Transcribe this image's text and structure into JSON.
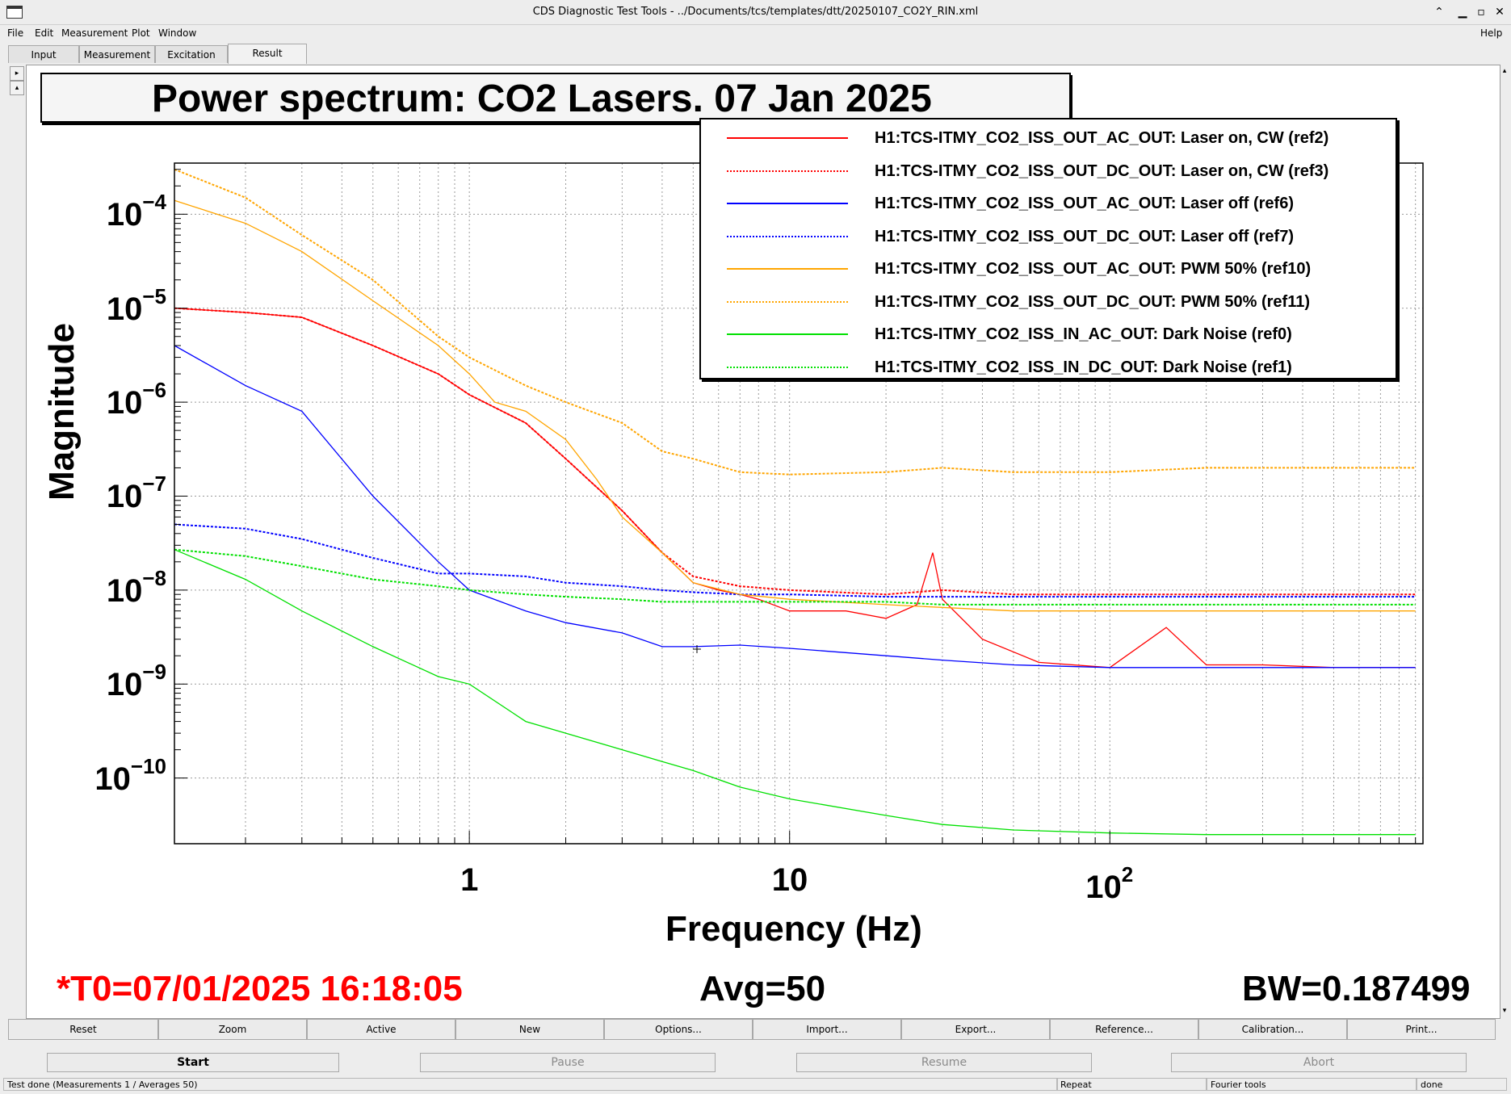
{
  "window": {
    "title": "CDS Diagnostic Test Tools - ../Documents/tcs/templates/dtt/20250107_CO2Y_RIN.xml",
    "controls": [
      "⌃",
      "✕"
    ]
  },
  "menu": {
    "file": "File",
    "edit": "Edit",
    "measurement": "Measurement",
    "plot": "Plot",
    "window": "Window",
    "help": "Help"
  },
  "tabs": [
    "Input",
    "Measurement",
    "Excitation",
    "Result"
  ],
  "active_tab": "Result",
  "plot": {
    "title": "Power spectrum: CO2 Lasers. 07 Jan 2025",
    "ylabel": "Magnitude",
    "xlabel": "Frequency (Hz)",
    "ytick_labels": [
      {
        "base": "10",
        "exp": "−4"
      },
      {
        "base": "10",
        "exp": "−5"
      },
      {
        "base": "10",
        "exp": "−6"
      },
      {
        "base": "10",
        "exp": "−7"
      },
      {
        "base": "10",
        "exp": "−8"
      },
      {
        "base": "10",
        "exp": "−9"
      },
      {
        "base": "10",
        "exp": "−10"
      }
    ],
    "xtick_labels": [
      {
        "base": "1",
        "exp": ""
      },
      {
        "base": "10",
        "exp": ""
      },
      {
        "base": "10",
        "exp": "2"
      }
    ]
  },
  "chart_data": {
    "type": "line",
    "title": "Power spectrum: CO2 Lasers. 07 Jan 2025",
    "xlabel": "Frequency (Hz)",
    "ylabel": "Magnitude",
    "xscale": "log",
    "yscale": "log",
    "xlim": [
      0.12,
      950
    ],
    "ylim": [
      2e-11,
      0.00035
    ],
    "grid": true,
    "legend_position": "top-right",
    "series": [
      {
        "name": "H1:TCS-ITMY_CO2_ISS_OUT_AC_OUT: Laser on, CW (ref2)",
        "color": "#ff0000",
        "style": "solid",
        "x": [
          0.12,
          0.2,
          0.3,
          0.5,
          0.8,
          1,
          1.5,
          2,
          3,
          4,
          5,
          6,
          7,
          8,
          10,
          15,
          20,
          25,
          28,
          30,
          40,
          60,
          100,
          150,
          200,
          300,
          500,
          900
        ],
        "y": [
          1e-05,
          9e-06,
          8e-06,
          4e-06,
          2e-06,
          1.2e-06,
          6e-07,
          2.5e-07,
          7e-08,
          2.5e-08,
          1.2e-08,
          1e-08,
          9e-09,
          8e-09,
          6e-09,
          6e-09,
          5e-09,
          7e-09,
          2.5e-08,
          8e-09,
          3e-09,
          1.7e-09,
          1.5e-09,
          4e-09,
          1.6e-09,
          1.6e-09,
          1.5e-09,
          1.5e-09
        ]
      },
      {
        "name": "H1:TCS-ITMY_CO2_ISS_OUT_DC_OUT: Laser on, CW (ref3)",
        "color": "#ff0000",
        "style": "dotted",
        "x": [
          0.12,
          0.2,
          0.3,
          0.5,
          0.8,
          1,
          1.5,
          2,
          3,
          4,
          5,
          7,
          10,
          20,
          30,
          50,
          100,
          200,
          500,
          900
        ],
        "y": [
          1e-05,
          9e-06,
          8e-06,
          4e-06,
          2e-06,
          1.2e-06,
          6e-07,
          2.5e-07,
          7e-08,
          2.5e-08,
          1.4e-08,
          1.1e-08,
          1e-08,
          9e-09,
          1e-08,
          9e-09,
          9e-09,
          9e-09,
          9e-09,
          9e-09
        ]
      },
      {
        "name": "H1:TCS-ITMY_CO2_ISS_OUT_AC_OUT: Laser off (ref6)",
        "color": "#0000ff",
        "style": "solid",
        "x": [
          0.12,
          0.2,
          0.3,
          0.5,
          0.8,
          1,
          1.5,
          2,
          3,
          4,
          5,
          7,
          10,
          20,
          30,
          50,
          100,
          200,
          500,
          900
        ],
        "y": [
          4e-06,
          1.5e-06,
          8e-07,
          1e-07,
          2e-08,
          1e-08,
          6e-09,
          4.5e-09,
          3.5e-09,
          2.5e-09,
          2.5e-09,
          2.6e-09,
          2.4e-09,
          2e-09,
          1.8e-09,
          1.6e-09,
          1.5e-09,
          1.5e-09,
          1.5e-09,
          1.5e-09
        ]
      },
      {
        "name": "H1:TCS-ITMY_CO2_ISS_OUT_DC_OUT: Laser off (ref7)",
        "color": "#0000ff",
        "style": "dotted",
        "x": [
          0.12,
          0.2,
          0.3,
          0.5,
          0.8,
          1,
          1.5,
          2,
          3,
          4,
          5,
          7,
          10,
          20,
          30,
          50,
          100,
          200,
          500,
          900
        ],
        "y": [
          5e-08,
          4.5e-08,
          3.5e-08,
          2.2e-08,
          1.5e-08,
          1.5e-08,
          1.4e-08,
          1.2e-08,
          1.1e-08,
          1e-08,
          9.5e-09,
          9e-09,
          9e-09,
          8.5e-09,
          8.5e-09,
          8.5e-09,
          8.5e-09,
          8.5e-09,
          8.5e-09,
          8.5e-09
        ]
      },
      {
        "name": "H1:TCS-ITMY_CO2_ISS_OUT_AC_OUT: PWM 50% (ref10)",
        "color": "#ffa500",
        "style": "solid",
        "x": [
          0.12,
          0.2,
          0.3,
          0.5,
          0.8,
          1,
          1.2,
          1.5,
          2,
          2.5,
          3,
          4,
          5,
          7,
          10,
          20,
          50,
          100,
          200,
          500,
          900
        ],
        "y": [
          0.00014,
          8e-05,
          4e-05,
          1.2e-05,
          4e-06,
          2e-06,
          1e-06,
          8e-07,
          4e-07,
          1.5e-07,
          6e-08,
          2.5e-08,
          1.2e-08,
          9e-09,
          8e-09,
          7e-09,
          6e-09,
          6e-09,
          6e-09,
          6e-09,
          6e-09
        ]
      },
      {
        "name": "H1:TCS-ITMY_CO2_ISS_OUT_DC_OUT: PWM 50% (ref11)",
        "color": "#ffa500",
        "style": "dotted",
        "x": [
          0.12,
          0.2,
          0.3,
          0.5,
          0.8,
          1,
          1.5,
          2,
          3,
          4,
          5,
          7,
          10,
          20,
          30,
          50,
          100,
          200,
          500,
          900
        ],
        "y": [
          0.0003,
          0.00015,
          6e-05,
          2e-05,
          5e-06,
          3e-06,
          1.5e-06,
          1e-06,
          6e-07,
          3e-07,
          2.5e-07,
          1.8e-07,
          1.7e-07,
          1.8e-07,
          2e-07,
          1.8e-07,
          1.8e-07,
          2e-07,
          2e-07,
          2e-07
        ]
      },
      {
        "name": "H1:TCS-ITMY_CO2_ISS_IN_AC_OUT: Dark Noise (ref0)",
        "color": "#00e000",
        "style": "solid",
        "x": [
          0.12,
          0.2,
          0.3,
          0.5,
          0.8,
          1,
          1.5,
          2,
          3,
          4,
          5,
          7,
          10,
          20,
          30,
          50,
          100,
          200,
          500,
          900
        ],
        "y": [
          2.7e-08,
          1.3e-08,
          6e-09,
          2.5e-09,
          1.2e-09,
          1e-09,
          4e-10,
          3e-10,
          2e-10,
          1.5e-10,
          1.2e-10,
          8e-11,
          6e-11,
          4e-11,
          3.2e-11,
          2.8e-11,
          2.6e-11,
          2.5e-11,
          2.5e-11,
          2.5e-11
        ]
      },
      {
        "name": "H1:TCS-ITMY_CO2_ISS_IN_DC_OUT: Dark Noise (ref1)",
        "color": "#00e000",
        "style": "dotted",
        "x": [
          0.12,
          0.2,
          0.3,
          0.5,
          0.8,
          1,
          1.5,
          2,
          3,
          4,
          5,
          7,
          10,
          20,
          30,
          50,
          100,
          200,
          500,
          900
        ],
        "y": [
          2.7e-08,
          2.3e-08,
          1.8e-08,
          1.3e-08,
          1.1e-08,
          1e-08,
          9e-09,
          8.5e-09,
          8e-09,
          7.5e-09,
          7.5e-09,
          7.5e-09,
          7.5e-09,
          7.5e-09,
          7e-09,
          7e-09,
          7e-09,
          7e-09,
          7e-09,
          7e-09
        ]
      }
    ]
  },
  "footer": {
    "t0": "*T0=07/01/2025 16:18:05",
    "avg": "Avg=50",
    "bw": "BW=0.187499"
  },
  "buttons_row1": [
    "Reset",
    "Zoom",
    "Active",
    "New",
    "Options...",
    "Import...",
    "Export...",
    "Reference...",
    "Calibration...",
    "Print..."
  ],
  "buttons_row2": {
    "start": "Start",
    "pause": "Pause",
    "resume": "Resume",
    "abort": "Abort"
  },
  "status": {
    "message": "Test done (Measurements 1 / Averages 50)",
    "repeat": "Repeat",
    "fourier": "Fourier tools",
    "state": "done"
  }
}
